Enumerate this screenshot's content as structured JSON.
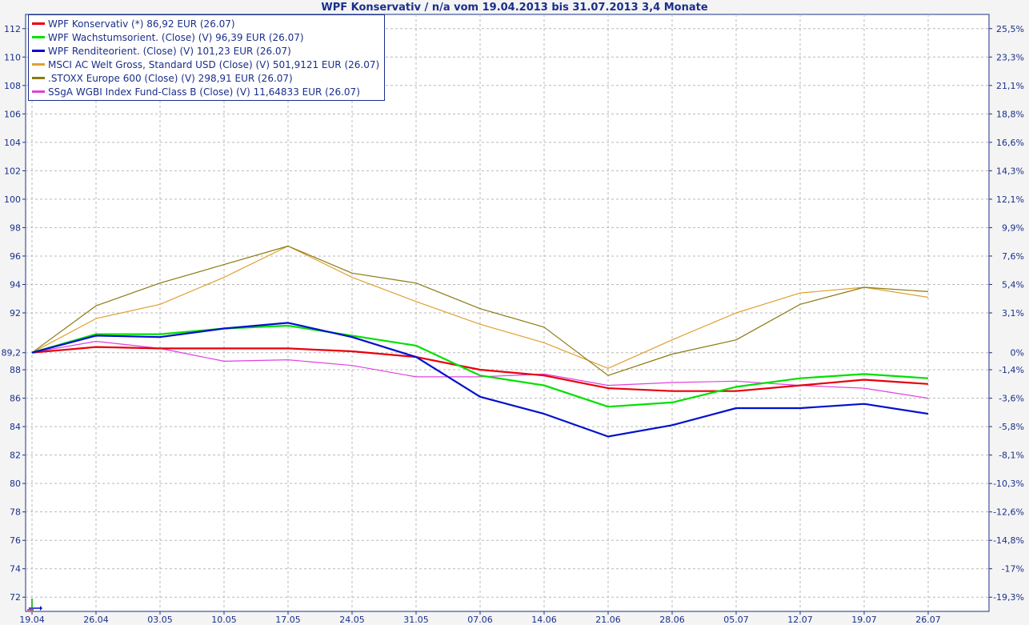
{
  "chart_data": {
    "type": "line",
    "title": "WPF Konservativ / n/a vom 19.04.2013 bis 31.07.2013 3,4 Monate",
    "x_labels": [
      "19.04",
      "26.04",
      "03.05",
      "10.05",
      "17.05",
      "24.05",
      "31.05",
      "07.06",
      "14.06",
      "21.06",
      "28.06",
      "05.07",
      "12.07",
      "19.07",
      "26.07"
    ],
    "ylim": [
      71,
      113
    ],
    "y_ticks": [
      72,
      74,
      76,
      78,
      80,
      82,
      84,
      86,
      88,
      89.2,
      92,
      94,
      96,
      98,
      100,
      102,
      104,
      106,
      108,
      110,
      112
    ],
    "y_tick_labels": [
      "72",
      "74",
      "76",
      "78",
      "80",
      "82",
      "84",
      "86",
      "88",
      "89,2",
      "92",
      "94",
      "96",
      "98",
      "100",
      "102",
      "104",
      "106",
      "108",
      "110",
      "112"
    ],
    "right_ticks": [
      {
        "y": 112,
        "label": "25,5%"
      },
      {
        "y": 110,
        "label": "23,3%"
      },
      {
        "y": 108,
        "label": "21,1%"
      },
      {
        "y": 106,
        "label": "18,8%"
      },
      {
        "y": 104,
        "label": "16,6%"
      },
      {
        "y": 102,
        "label": "14,3%"
      },
      {
        "y": 100,
        "label": "12,1%"
      },
      {
        "y": 98,
        "label": "9,9%"
      },
      {
        "y": 96,
        "label": "7,6%"
      },
      {
        "y": 94,
        "label": "5,4%"
      },
      {
        "y": 92,
        "label": "3,1%"
      },
      {
        "y": 89.2,
        "label": "0%"
      },
      {
        "y": 88,
        "label": "-1,4%"
      },
      {
        "y": 86,
        "label": "-3,6%"
      },
      {
        "y": 84,
        "label": "-5,8%"
      },
      {
        "y": 82,
        "label": "-8,1%"
      },
      {
        "y": 80,
        "label": "-10,3%"
      },
      {
        "y": 78,
        "label": "-12,6%"
      },
      {
        "y": 76,
        "label": "-14,8%"
      },
      {
        "y": 74,
        "label": "-17%"
      },
      {
        "y": 72,
        "label": "-19,3%"
      }
    ],
    "grid": true,
    "legend_position": "top-left",
    "series": [
      {
        "name": "WPF Konservativ (*) 86,92 EUR (26.07)",
        "color": "#e8000b",
        "width": 2.2,
        "values": [
          89.2,
          89.6,
          89.5,
          89.5,
          89.5,
          89.3,
          88.9,
          88.0,
          87.6,
          86.7,
          86.5,
          86.5,
          86.9,
          87.3,
          87.0
        ]
      },
      {
        "name": "WPF Wachstumsorient. (Close) (V) 96,39 EUR (26.07)",
        "color": "#00e000",
        "width": 2.2,
        "values": [
          89.2,
          90.5,
          90.5,
          90.9,
          91.1,
          90.4,
          89.7,
          87.6,
          86.9,
          85.4,
          85.7,
          86.8,
          87.4,
          87.7,
          87.4
        ]
      },
      {
        "name": "WPF Renditeorient. (Close) (V) 101,23 EUR (26.07)",
        "color": "#0010cc",
        "width": 2.2,
        "values": [
          89.2,
          90.4,
          90.3,
          90.9,
          91.3,
          90.3,
          88.9,
          86.1,
          84.9,
          83.3,
          84.1,
          85.3,
          85.3,
          85.6,
          84.9
        ]
      },
      {
        "name": "MSCI AC Welt Gross, Standard USD (Close) (V) 501,9121 EUR (26.07)",
        "color": "#e0a030",
        "width": 1.2,
        "values": [
          89.2,
          91.6,
          92.6,
          94.5,
          96.7,
          94.5,
          92.8,
          91.2,
          89.9,
          88.1,
          90.1,
          92.0,
          93.4,
          93.8,
          93.1
        ]
      },
      {
        "name": ".STOXX Europe 600 (Close) (V) 298,91 EUR (26.07)",
        "color": "#8a7a10",
        "width": 1.2,
        "values": [
          89.2,
          92.5,
          94.1,
          95.4,
          96.7,
          94.8,
          94.1,
          92.3,
          91.0,
          87.6,
          89.1,
          90.1,
          92.6,
          93.8,
          93.5
        ]
      },
      {
        "name": "SSgA WGBI Index Fund-Class B (Close) (V) 11,64833 EUR (26.07)",
        "color": "#e040e0",
        "width": 1.2,
        "values": [
          89.2,
          90.0,
          89.5,
          88.6,
          88.7,
          88.3,
          87.5,
          87.5,
          87.7,
          86.9,
          87.1,
          87.2,
          86.9,
          86.7,
          86.0
        ]
      }
    ]
  }
}
